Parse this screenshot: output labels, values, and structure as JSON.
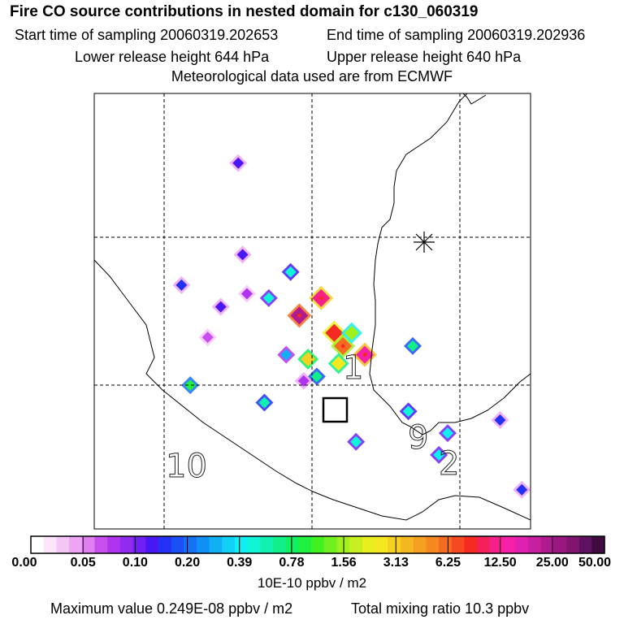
{
  "header": {
    "title": "Fire CO source contributions in nested domain for c130_060319",
    "start_time": "Start time of sampling 20060319.202653",
    "end_time": "End time of sampling 20060319.202936",
    "lower_release": "Lower release height  644 hPa",
    "upper_release": "Upper release height  640 hPa",
    "met_data": "Meteorological data used are from ECMWF"
  },
  "chart_data": {
    "type": "heatmap",
    "title": "Fire CO source contributions in nested domain for c130_060319",
    "map_labels": [
      "1",
      "9",
      "2",
      "10"
    ],
    "receptor_marker": "asterisk",
    "colorbar": {
      "unit_label": "10E-10 ppbv / m2",
      "tick_labels": [
        "0.00",
        "0.05",
        "0.10",
        "0.20",
        "0.39",
        "0.78",
        "1.56",
        "3.13",
        "6.25",
        "12.50",
        "25.00",
        "50.00"
      ],
      "colors": [
        "#ffffff",
        "#fde6fd",
        "#f5c6f8",
        "#eea5f5",
        "#df7ff0",
        "#c94ef0",
        "#b033f0",
        "#8f2cf0",
        "#7020f5",
        "#4a18f5",
        "#2530f5",
        "#1a50f5",
        "#1470f5",
        "#1090f5",
        "#10b0f5",
        "#10d0f5",
        "#10eef5",
        "#10f5d8",
        "#10f0b0",
        "#10f088",
        "#10f060",
        "#20f040",
        "#40f020",
        "#70f020",
        "#a0f020",
        "#c8f020",
        "#e8f020",
        "#f5e820",
        "#f5d020",
        "#f5b820",
        "#f5a020",
        "#f58820",
        "#f56c20",
        "#f54a20",
        "#f52a20",
        "#f5205a",
        "#f5208a",
        "#f520a8",
        "#e020b0",
        "#c820a0",
        "#b01a90",
        "#9a1880",
        "#801670",
        "#601060",
        "#400c40"
      ]
    },
    "cells": [
      {
        "lon": 0.47,
        "lat": 0.51,
        "value": 24.9
      },
      {
        "lon": 0.52,
        "lat": 0.47,
        "value": 12.0
      },
      {
        "lon": 0.55,
        "lat": 0.55,
        "value": 8.0
      },
      {
        "lon": 0.57,
        "lat": 0.58,
        "value": 6.5
      },
      {
        "lon": 0.62,
        "lat": 0.6,
        "value": 14.0
      },
      {
        "lon": 0.56,
        "lat": 0.62,
        "value": 2.8
      },
      {
        "lon": 0.59,
        "lat": 0.55,
        "value": 1.6
      },
      {
        "lon": 0.49,
        "lat": 0.61,
        "value": 3.0
      },
      {
        "lon": 0.51,
        "lat": 0.65,
        "value": 0.7
      },
      {
        "lon": 0.44,
        "lat": 0.6,
        "value": 0.3
      },
      {
        "lon": 0.39,
        "lat": 0.71,
        "value": 0.6
      },
      {
        "lon": 0.22,
        "lat": 0.67,
        "value": 0.9
      },
      {
        "lon": 0.45,
        "lat": 0.41,
        "value": 0.5
      },
      {
        "lon": 0.4,
        "lat": 0.47,
        "value": 0.45
      },
      {
        "lon": 0.29,
        "lat": 0.49,
        "value": 0.13
      },
      {
        "lon": 0.2,
        "lat": 0.44,
        "value": 0.14
      },
      {
        "lon": 0.34,
        "lat": 0.37,
        "value": 0.12
      },
      {
        "lon": 0.33,
        "lat": 0.16,
        "value": 0.12
      },
      {
        "lon": 0.6,
        "lat": 0.8,
        "value": 0.45
      },
      {
        "lon": 0.72,
        "lat": 0.73,
        "value": 0.5
      },
      {
        "lon": 0.79,
        "lat": 0.83,
        "value": 0.4
      },
      {
        "lon": 0.73,
        "lat": 0.58,
        "value": 0.7
      },
      {
        "lon": 0.81,
        "lat": 0.78,
        "value": 0.4
      },
      {
        "lon": 0.93,
        "lat": 0.75,
        "value": 0.15
      },
      {
        "lon": 0.98,
        "lat": 0.91,
        "value": 0.15
      },
      {
        "lon": 0.48,
        "lat": 0.66,
        "value": 0.08
      },
      {
        "lon": 0.35,
        "lat": 0.46,
        "value": 0.07
      },
      {
        "lon": 0.26,
        "lat": 0.56,
        "value": 0.06
      }
    ]
  },
  "colorbar_label": "10E-10 ppbv / m2",
  "footer": {
    "max_value": "Maximum value  0.249E-08 ppbv / m2",
    "total_mixing": "Total mixing ratio       10.3 ppbv"
  }
}
